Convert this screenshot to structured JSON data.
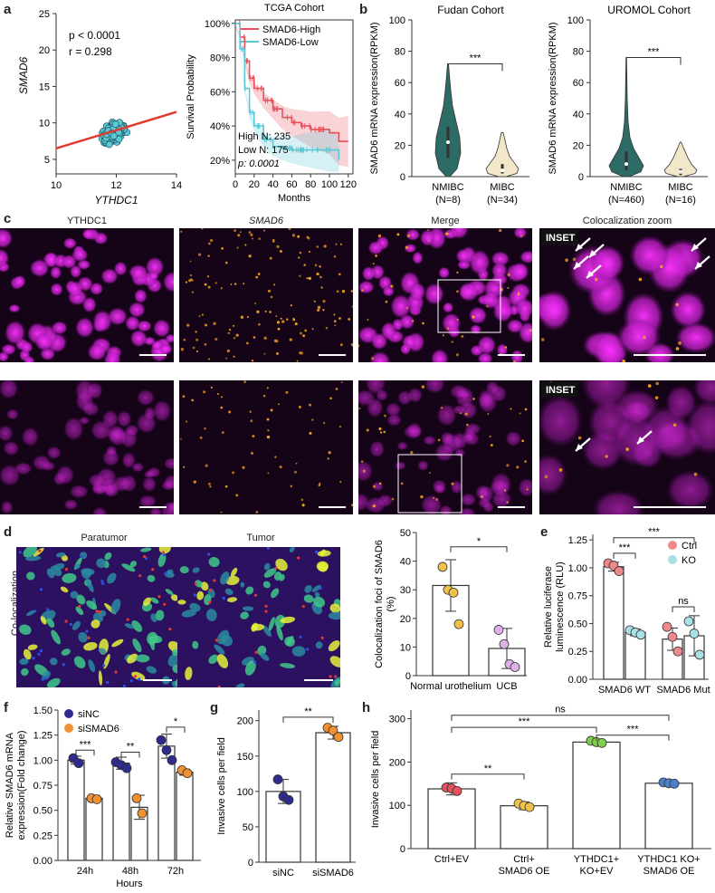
{
  "panels": {
    "a": "a",
    "b": "b",
    "c": "c",
    "d": "d",
    "e": "e",
    "f": "f",
    "g": "g",
    "h": "h"
  },
  "colors": {
    "cyan": "#5bc8d6",
    "red": "#e8505b",
    "teal": "#2d6b67",
    "cream": "#f3e7c9",
    "magenta": "#d84fd8",
    "orange": "#f5a623",
    "navy": "#2e2b8f",
    "gold": "#f0c24a",
    "green": "#7cd04a",
    "blue": "#4a80c8"
  },
  "scatter": {
    "stat_p": "p < 0.0001",
    "stat_r": "r = 0.298",
    "xlabel": "YTHDC1",
    "ylabel": "SMAD6",
    "xticks": [
      "10",
      "12",
      "14"
    ],
    "yticks": [
      "5",
      "10",
      "15",
      "20",
      "25"
    ],
    "xlim": [
      10,
      14
    ],
    "ylim": [
      3,
      25
    ],
    "fit": [
      [
        10,
        6.5
      ],
      [
        14,
        11.5
      ]
    ]
  },
  "km": {
    "title": "TCGA Cohort",
    "legend": [
      {
        "name": "SMAD6-High",
        "color": "#e8505b"
      },
      {
        "name": "SMAD6-Low",
        "color": "#5bc8d6"
      }
    ],
    "ylabel": "Survival Probability",
    "xlabel": "Months",
    "yticks": [
      "20%",
      "40%",
      "60%",
      "80%",
      "100%"
    ],
    "xticks": [
      "0",
      "20",
      "40",
      "60",
      "80",
      "100",
      "120"
    ],
    "ann_high": "High N: 235",
    "ann_low": "Low N: 175",
    "ann_p": "p: 0.0001",
    "high": [
      [
        0,
        100
      ],
      [
        5,
        92
      ],
      [
        10,
        78
      ],
      [
        15,
        68
      ],
      [
        20,
        62
      ],
      [
        30,
        55
      ],
      [
        40,
        50
      ],
      [
        50,
        45
      ],
      [
        60,
        42
      ],
      [
        70,
        40
      ],
      [
        80,
        38
      ],
      [
        100,
        36
      ],
      [
        110,
        31
      ],
      [
        120,
        31
      ]
    ],
    "low": [
      [
        0,
        100
      ],
      [
        5,
        85
      ],
      [
        10,
        62
      ],
      [
        15,
        48
      ],
      [
        20,
        40
      ],
      [
        30,
        32
      ],
      [
        40,
        28
      ],
      [
        50,
        27
      ],
      [
        60,
        26
      ],
      [
        80,
        26
      ],
      [
        100,
        26
      ],
      [
        110,
        20
      ]
    ]
  },
  "violin_fudan": {
    "title": "Fudan Cohort",
    "ylabel": "SMAD6 mRNA expression(RPKM)",
    "yticks": [
      "0",
      "20",
      "40",
      "60",
      "80",
      "100"
    ],
    "cats": [
      {
        "name": "NMIBC",
        "n": "(N=8)"
      },
      {
        "name": "MIBC",
        "n": "(N=34)"
      }
    ],
    "sig": "***"
  },
  "violin_uromol": {
    "title": "UROMOL Cohort",
    "ylabel": "SMAD6 mRNA expression(RPKM)",
    "yticks": [
      "0",
      "20",
      "40",
      "60",
      "80",
      "100"
    ],
    "cats": [
      {
        "name": "NMIBC",
        "n": "(N=460)"
      },
      {
        "name": "MIBC",
        "n": "(N=16)"
      }
    ],
    "sig": "***"
  },
  "microscopy": {
    "cols": [
      "YTHDC1",
      "SMAD6",
      "Merge",
      "Colocalization zoom"
    ],
    "inset": "INSET"
  },
  "coloc": {
    "labels": [
      "Paratumor",
      "Tumor"
    ],
    "rowlabel": "Co-localization"
  },
  "d_bar": {
    "ylabel": "Colocalization foci of SMAD6 (%)",
    "yticks": [
      "0",
      "10",
      "20",
      "30",
      "40",
      "50"
    ],
    "ylim": [
      0,
      50
    ],
    "cats": [
      "Normal urothelium",
      "UCB"
    ],
    "values": [
      31.5,
      9.5
    ],
    "err": [
      9,
      7
    ],
    "points": [
      [
        38,
        30,
        29,
        18
      ],
      [
        16,
        11,
        4,
        3
      ]
    ],
    "sig": "*"
  },
  "e_bar": {
    "ylabel": "Relative luciferase luminescence (RLU)",
    "yticks": [
      "0.00",
      "0.25",
      "0.50",
      "0.75",
      "1.00",
      "1.25"
    ],
    "ylim": [
      0,
      1.3
    ],
    "groups": [
      "SMAD6 WT",
      "SMAD6 Mut"
    ],
    "legend": [
      "Ctrl",
      "KO"
    ],
    "values": [
      [
        1.01,
        0.42
      ],
      [
        0.36,
        0.39
      ]
    ],
    "err": [
      [
        0.04,
        0.03
      ],
      [
        0.1,
        0.18
      ]
    ],
    "points": [
      [
        [
          1.04,
          1.02,
          0.97
        ],
        [
          0.44,
          0.42,
          0.4
        ]
      ],
      [
        [
          0.47,
          0.38,
          0.25
        ],
        [
          0.52,
          0.41,
          0.22
        ]
      ]
    ],
    "sig": [
      "***",
      "***",
      "ns"
    ]
  },
  "f_bar": {
    "ylabel": "Relative SMAD6 mRNA expression(Fold change)",
    "yticks": [
      "0.00",
      "0.25",
      "0.50",
      "0.75",
      "1.00",
      "1.25",
      "1.50"
    ],
    "ylim": [
      0,
      1.5
    ],
    "groups": [
      "24h",
      "48h",
      "72h"
    ],
    "xlabel": "Hours",
    "legend": [
      "siNC",
      "siSMAD6"
    ],
    "values": [
      [
        1.0,
        0.62
      ],
      [
        0.97,
        0.53
      ],
      [
        1.14,
        0.88
      ]
    ],
    "err": [
      [
        0.04,
        0.03
      ],
      [
        0.06,
        0.12
      ],
      [
        0.12,
        0.03
      ]
    ],
    "points": [
      [
        [
          1.02,
          0.97
        ],
        [
          0.62,
          0.61
        ]
      ],
      [
        [
          0.98,
          0.95,
          0.92
        ],
        [
          0.62,
          0.47
        ]
      ],
      [
        [
          1.2,
          1.1,
          1.0
        ],
        [
          0.9,
          0.87
        ]
      ]
    ],
    "sig": [
      "***",
      "**",
      "*"
    ]
  },
  "g_bar": {
    "ylabel": "Invasive cells per field",
    "yticks": [
      "0",
      "50",
      "100",
      "150",
      "200"
    ],
    "ylim": [
      0,
      215
    ],
    "cats": [
      "siNC",
      "siSMAD6"
    ],
    "values": [
      100,
      183
    ],
    "err": [
      17,
      9
    ],
    "points": [
      [
        117,
        93,
        88
      ],
      [
        190,
        186,
        177
      ]
    ],
    "sig": "**"
  },
  "h_bar": {
    "ylabel": "Invasive cells per field",
    "yticks": [
      "0",
      "100",
      "200",
      "300"
    ],
    "ylim": [
      0,
      320
    ],
    "cats": [
      "Ctrl+EV",
      "Ctrl+\nSMAD6 OE",
      "YTHDC1+\nKO+EV",
      "YTHDC1 KO+\nSMAD6 OE"
    ],
    "values": [
      138,
      99,
      246,
      151
    ],
    "err": [
      14,
      9,
      6,
      5
    ],
    "points": [
      [
        141,
        139,
        133
      ],
      [
        104,
        99,
        96
      ],
      [
        249,
        246,
        244
      ],
      [
        153,
        151,
        150
      ]
    ],
    "sig": [
      "**",
      "***",
      "ns",
      "***"
    ]
  }
}
